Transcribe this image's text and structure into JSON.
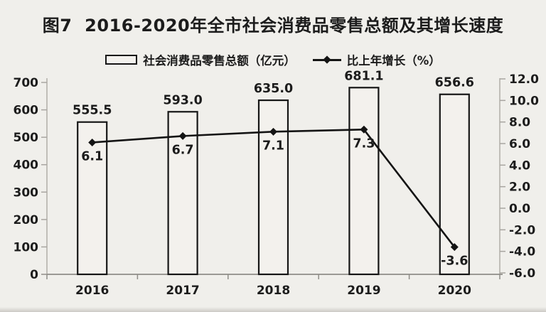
{
  "figure": {
    "title": "图7  2016-2020年全市社会消费品零售总额及其增长速度"
  },
  "legend": {
    "bar_label": "社会消费品零售总额（亿元）",
    "line_label": "比上年增长（%）"
  },
  "chart_data": {
    "type": "bar",
    "subtype": "combo-bar-line",
    "title": "图7 2016-2020年全市社会消费品零售总额及其增长速度",
    "categories": [
      "2016",
      "2017",
      "2018",
      "2019",
      "2020"
    ],
    "series": [
      {
        "name": "社会消费品零售总额（亿元）",
        "type": "bar",
        "axis": "left",
        "values": [
          555.5,
          593.0,
          635.0,
          681.1,
          656.6
        ],
        "value_labels": [
          "555.5",
          "593.0",
          "635.0",
          "681.1",
          "656.6"
        ]
      },
      {
        "name": "比上年增长（%）",
        "type": "line",
        "axis": "right",
        "values": [
          6.1,
          6.7,
          7.1,
          7.3,
          -3.6
        ],
        "value_labels": [
          "6.1",
          "6.7",
          "7.1",
          "7.3",
          "-3.6"
        ]
      }
    ],
    "left_axis": {
      "min": 0,
      "max": 700,
      "step": 100,
      "tick_labels": [
        "0",
        "100",
        "200",
        "300",
        "400",
        "500",
        "600",
        "700"
      ]
    },
    "right_axis": {
      "min": -6,
      "max": 12,
      "step": 2,
      "tick_labels": [
        "-6.0",
        "-4.0",
        "-2.0",
        "0.0",
        "2.0",
        "4.0",
        "6.0",
        "8.0",
        "10.0",
        "12.0"
      ]
    },
    "grid": false,
    "legend_position": "top"
  },
  "colors": {
    "background": "#f0efeb",
    "text": "#1c1c1c",
    "bar_fill": "#f3f1ed",
    "bar_border": "#161616",
    "line": "#141414",
    "axis": "#b5b2ac",
    "x_axis": "#8f8d88",
    "tick": "#a8a5a0"
  }
}
